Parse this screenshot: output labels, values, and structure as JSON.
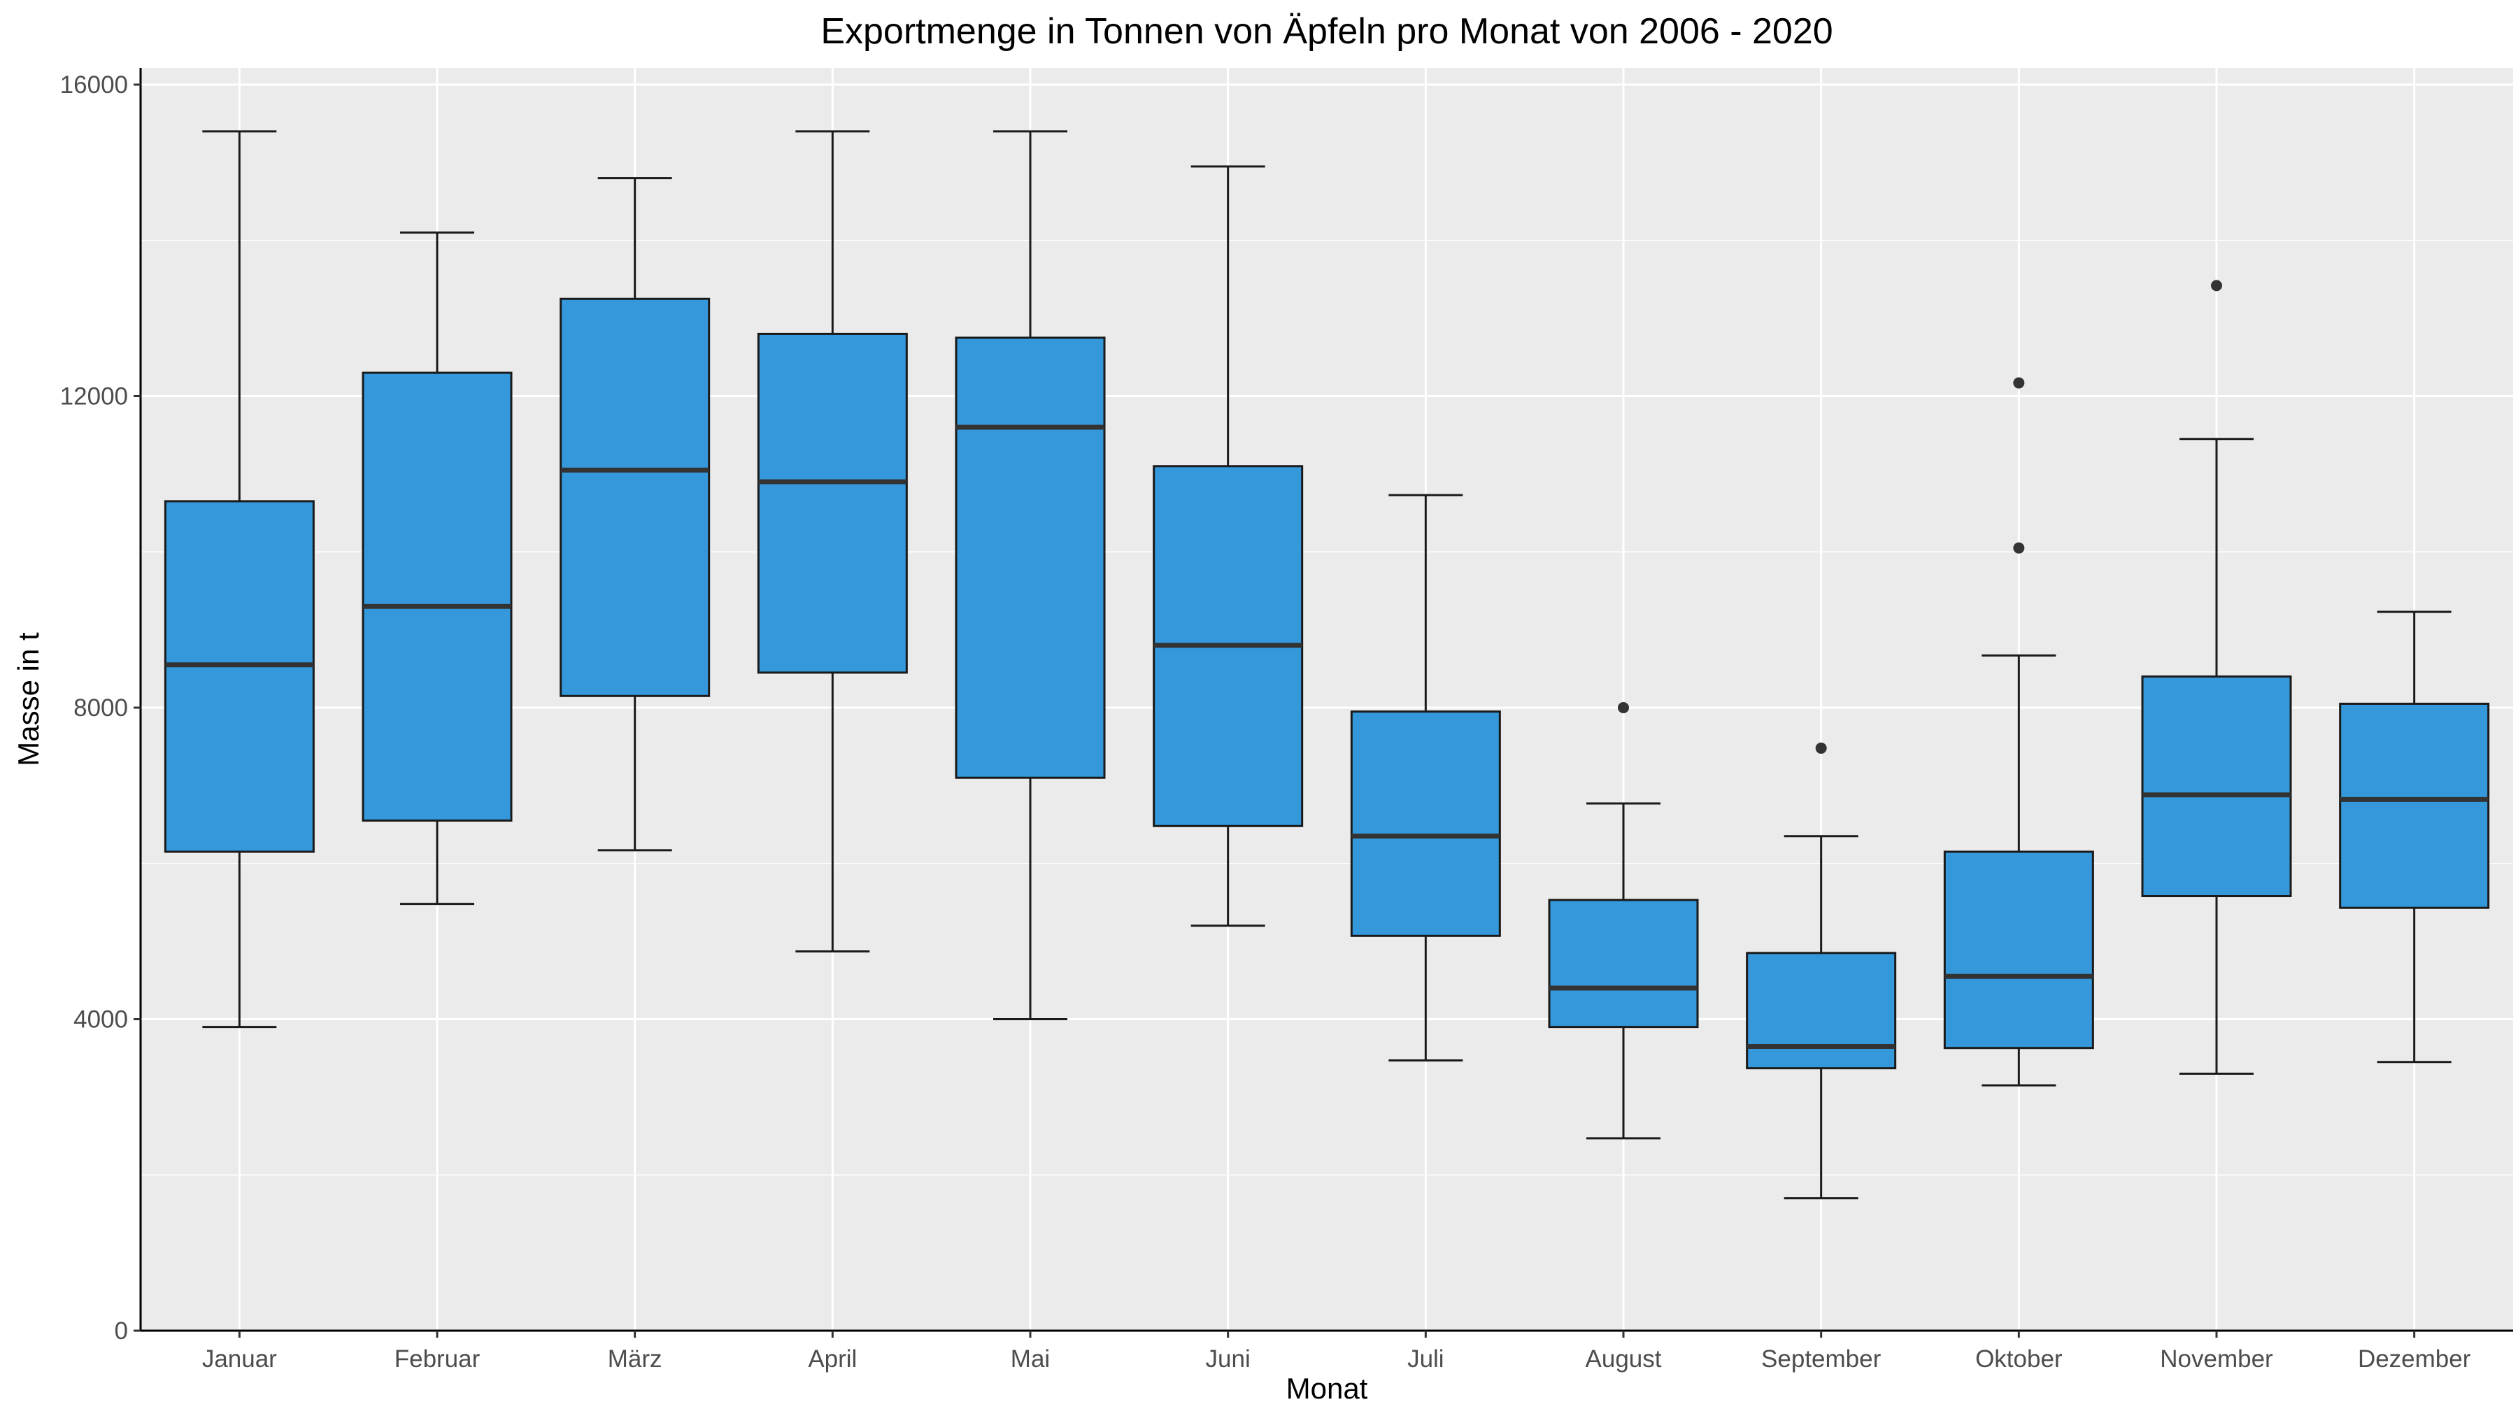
{
  "chart_data": {
    "type": "boxplot",
    "title": "Exportmenge in Tonnen von Äpfeln pro Monat von 2006 - 2020",
    "xlabel": "Monat",
    "ylabel": "Masse in t",
    "ylim": [
      0,
      16000
    ],
    "yticks": [
      "0",
      "4000",
      "8000",
      "12000",
      "16000"
    ],
    "grid": true,
    "legend": "none",
    "colors": {
      "fill": "#3498db",
      "stroke": "#1a1a1a",
      "panel": "#ebebeb",
      "grid": "#ffffff",
      "outlier": "#333333"
    },
    "categories": [
      "Januar",
      "Februar",
      "März",
      "April",
      "Mai",
      "Juni",
      "Juli",
      "August",
      "September",
      "Oktober",
      "November",
      "Dezember"
    ],
    "boxes": [
      {
        "min": 3900,
        "q1": 6150,
        "median": 8550,
        "q3": 10650,
        "max": 15400,
        "outliers": []
      },
      {
        "min": 5480,
        "q1": 6550,
        "median": 9300,
        "q3": 12300,
        "max": 14100,
        "outliers": []
      },
      {
        "min": 6170,
        "q1": 8150,
        "median": 11050,
        "q3": 13250,
        "max": 14800,
        "outliers": []
      },
      {
        "min": 4870,
        "q1": 8450,
        "median": 10900,
        "q3": 12800,
        "max": 15400,
        "outliers": []
      },
      {
        "min": 4000,
        "q1": 7100,
        "median": 11600,
        "q3": 12750,
        "max": 15400,
        "outliers": []
      },
      {
        "min": 5200,
        "q1": 6480,
        "median": 8800,
        "q3": 11100,
        "max": 14950,
        "outliers": []
      },
      {
        "min": 3470,
        "q1": 5070,
        "median": 6350,
        "q3": 7950,
        "max": 10730,
        "outliers": []
      },
      {
        "min": 2470,
        "q1": 3900,
        "median": 4400,
        "q3": 5530,
        "max": 6770,
        "outliers": [
          8000
        ]
      },
      {
        "min": 1700,
        "q1": 3370,
        "median": 3650,
        "q3": 4850,
        "max": 6350,
        "outliers": [
          7480
        ]
      },
      {
        "min": 3150,
        "q1": 3630,
        "median": 4550,
        "q3": 6150,
        "max": 8670,
        "outliers": [
          10050,
          12170
        ]
      },
      {
        "min": 3300,
        "q1": 5580,
        "median": 6880,
        "q3": 8400,
        "max": 11450,
        "outliers": [
          13420
        ]
      },
      {
        "min": 3450,
        "q1": 5430,
        "median": 6820,
        "q3": 8050,
        "max": 9230,
        "outliers": []
      }
    ]
  }
}
